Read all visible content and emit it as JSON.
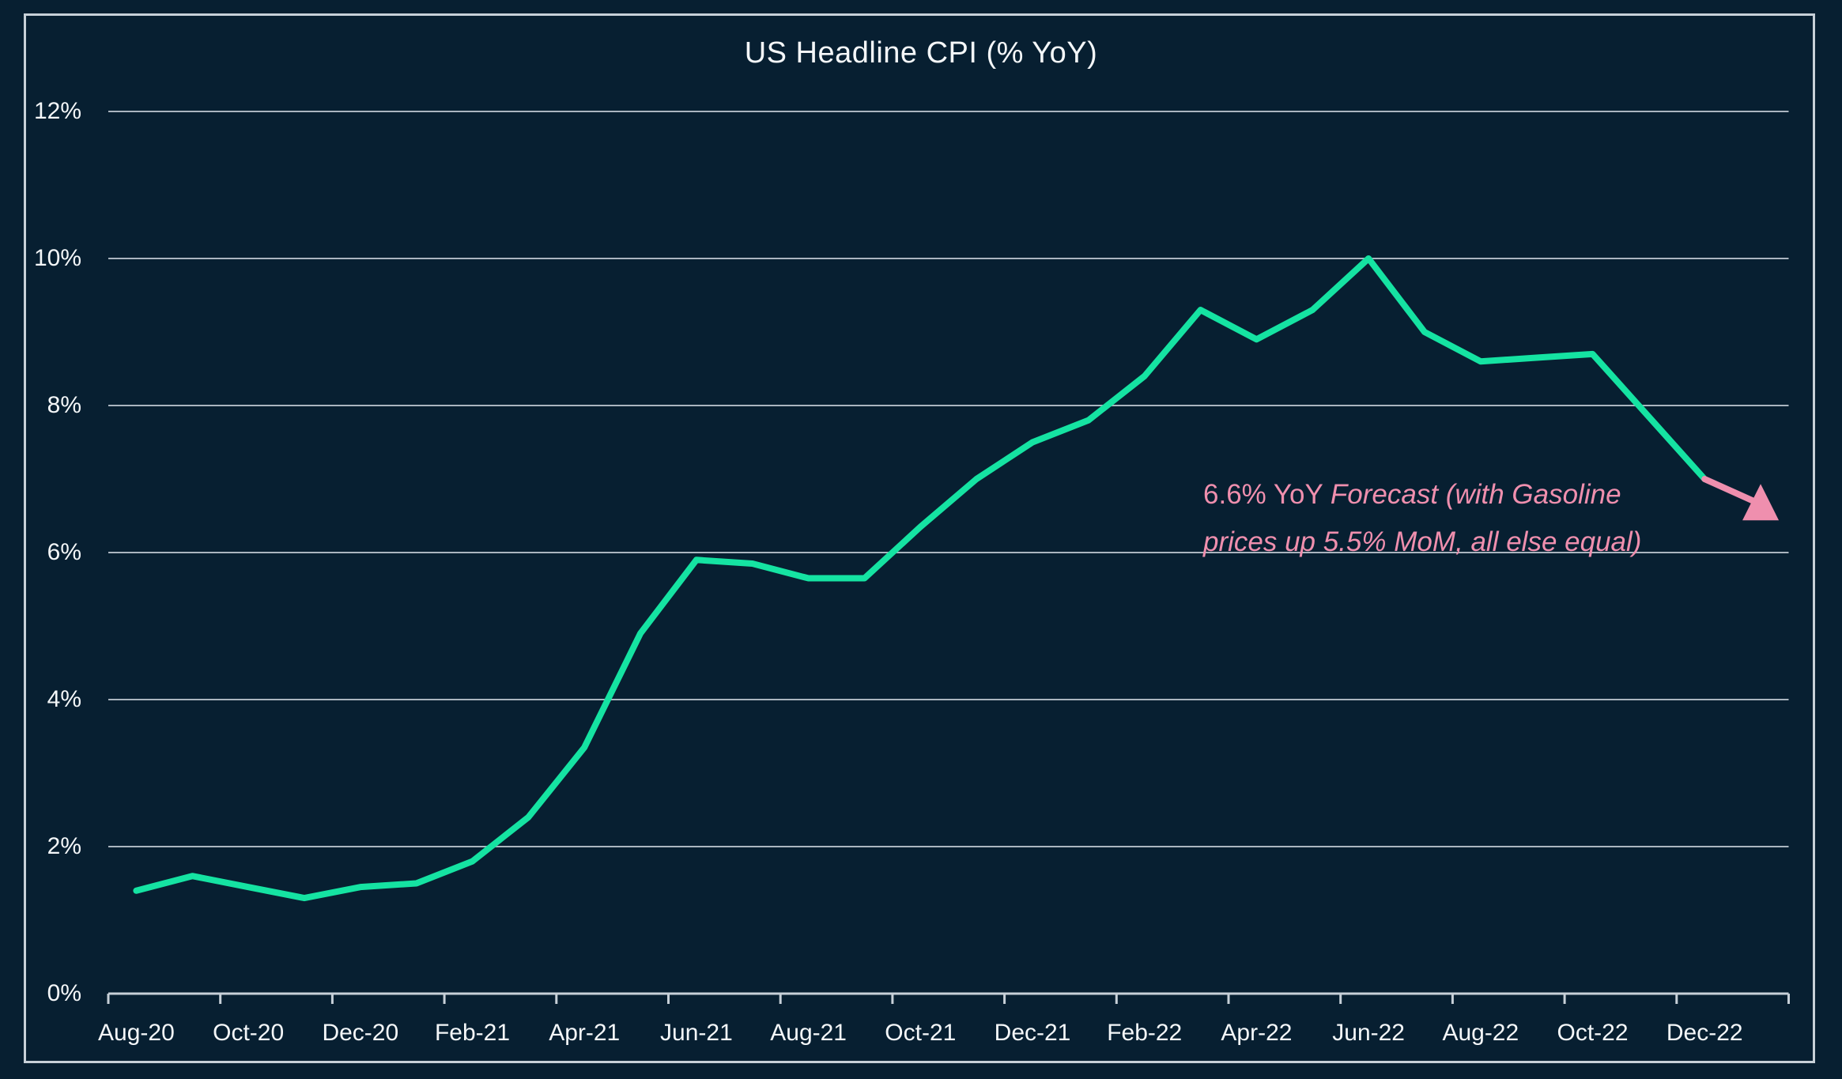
{
  "chart_data": {
    "type": "line",
    "title": "US Headline CPI (% YoY)",
    "xlabel": "",
    "ylabel": "",
    "ylim": [
      0,
      12
    ],
    "yticks": [
      0,
      2,
      4,
      6,
      8,
      10,
      12
    ],
    "ytick_labels": [
      "0%",
      "2%",
      "4%",
      "6%",
      "8%",
      "10%",
      "12%"
    ],
    "grid": "horizontal",
    "legend": "none",
    "background_color": "#071f31",
    "grid_color": "#c7d0d8",
    "text_color": "#f4f7f9",
    "categories": [
      "Aug-20",
      "Sep-20",
      "Oct-20",
      "Nov-20",
      "Dec-20",
      "Jan-21",
      "Feb-21",
      "Mar-21",
      "Apr-21",
      "May-21",
      "Jun-21",
      "Jul-21",
      "Aug-21",
      "Sep-21",
      "Oct-21",
      "Nov-21",
      "Dec-21",
      "Jan-22",
      "Feb-22",
      "Mar-22",
      "Apr-22",
      "May-22",
      "Jun-22",
      "Jul-22",
      "Aug-22",
      "Sep-22",
      "Oct-22",
      "Nov-22",
      "Dec-22"
    ],
    "xtick_labels": [
      "Aug-20",
      "Oct-20",
      "Dec-20",
      "Feb-21",
      "Apr-21",
      "Jun-21",
      "Aug-21",
      "Oct-21",
      "Dec-21",
      "Feb-22",
      "Apr-22",
      "Jun-22",
      "Aug-22",
      "Oct-22",
      "Dec-22"
    ],
    "series": [
      {
        "name": "US Headline CPI % YoY (actual)",
        "color": "#15e3a2",
        "values": [
          1.4,
          1.6,
          1.45,
          1.3,
          1.45,
          1.5,
          1.8,
          2.4,
          3.35,
          4.9,
          5.9,
          5.85,
          5.65,
          5.65,
          6.35,
          7.0,
          7.5,
          7.8,
          8.4,
          9.3,
          8.9,
          9.3,
          10.0,
          9.0,
          8.6,
          8.65,
          8.7,
          7.85,
          7.0
        ]
      }
    ],
    "forecast": {
      "value": 6.6,
      "months_after_last_actual": 1,
      "color": "#ef8fae",
      "marker": "triangle-up"
    },
    "annotation": {
      "prefix": "6.6% YoY ",
      "italic_line1": "Forecast (with Gasoline",
      "italic_line2": "prices up 5.5% MoM, all else equal)",
      "color": "#ef8fae"
    }
  }
}
